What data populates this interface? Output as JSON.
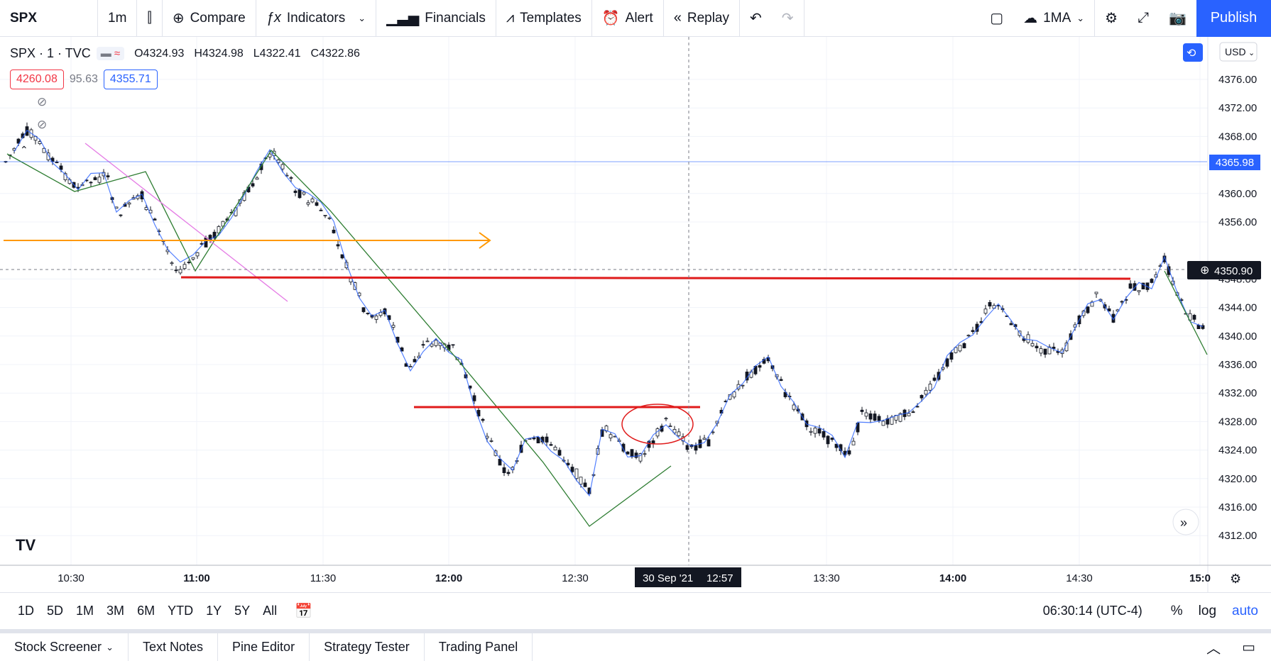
{
  "toolbar": {
    "symbol": "SPX",
    "interval": "1m",
    "compare": "Compare",
    "indicators": "Indicators",
    "financials": "Financials",
    "templates": "Templates",
    "alert": "Alert",
    "replay": "Replay",
    "ma_label": "1MA",
    "publish": "Publish"
  },
  "legend": {
    "title": "SPX · 1 · TVC",
    "open": "O4324.93",
    "high": "H4324.98",
    "low": "L4322.41",
    "close": "C4322.86",
    "bid": "4260.08",
    "spread": "95.63",
    "ask": "4355.71"
  },
  "price_axis": {
    "currency": "USD",
    "labels": [
      "4376.00",
      "4372.00",
      "4368.00",
      "4364.00",
      "4360.00",
      "4356.00",
      "4348.00",
      "4344.00",
      "4340.00",
      "4336.00",
      "4332.00",
      "4328.00",
      "4324.00",
      "4320.00",
      "4316.00",
      "4312.00"
    ],
    "current_price": "4365.98",
    "crosshair_price": "4350.90"
  },
  "time_axis": {
    "labels": [
      "10:30",
      "11:00",
      "11:30",
      "12:00",
      "12:30",
      "13:30",
      "14:00",
      "14:30",
      "15:0"
    ],
    "crosshair_date": "30 Sep '21",
    "crosshair_time": "12:57"
  },
  "bottom": {
    "ranges": [
      "1D",
      "5D",
      "1M",
      "3M",
      "6M",
      "YTD",
      "1Y",
      "5Y",
      "All"
    ],
    "clock": "06:30:14 (UTC-4)",
    "percent": "%",
    "log": "log",
    "auto": "auto"
  },
  "tabs": [
    "Stock Screener",
    "Text Notes",
    "Pine Editor",
    "Strategy Tester",
    "Trading Panel"
  ],
  "colors": {
    "accent": "#2962ff",
    "red": "#f23645",
    "orange": "#ff9800",
    "green": "#2e7d32"
  }
}
